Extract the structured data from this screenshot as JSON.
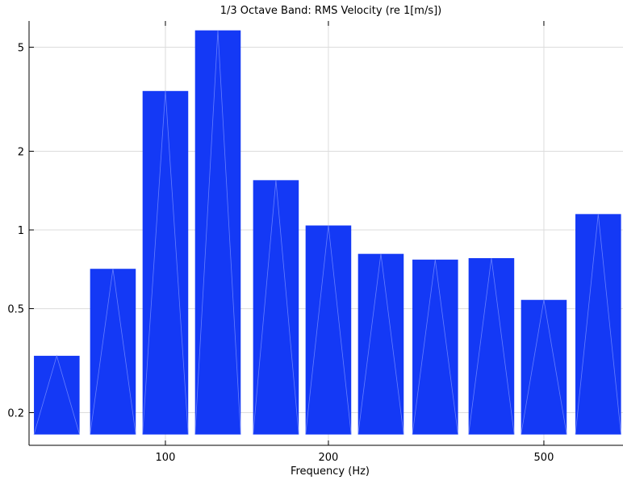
{
  "chart_data": {
    "type": "bar",
    "title": "1/3 Octave Band: RMS Velocity (re 1[m/s])",
    "xlabel": "Frequency (Hz)",
    "ylabel": "",
    "x_scale": "log",
    "y_scale": "log",
    "xlim": [
      56,
      700
    ],
    "ylim": [
      0.15,
      6.3
    ],
    "bar_base": 0.165,
    "x_ticks": [
      100,
      200,
      500
    ],
    "y_ticks": [
      0.2,
      0.5,
      1,
      2,
      5
    ],
    "grid": true,
    "categories": [
      63,
      80,
      100,
      125,
      160,
      200,
      250,
      315,
      400,
      500,
      630
    ],
    "values": [
      0.33,
      0.71,
      3.4,
      5.8,
      1.55,
      1.04,
      0.81,
      0.77,
      0.78,
      0.54,
      1.15
    ],
    "color": "#1439f5"
  }
}
